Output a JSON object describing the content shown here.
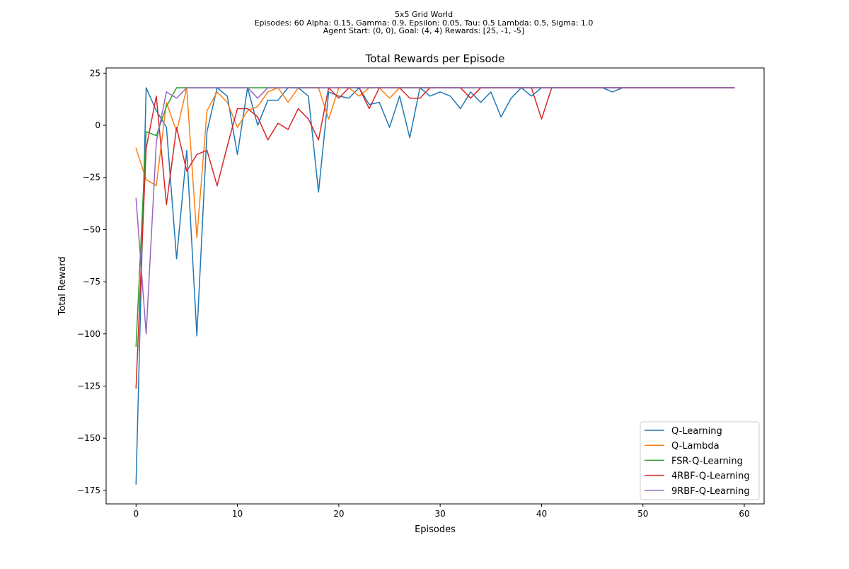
{
  "figure": {
    "suptitle_lines": [
      "5x5 Grid World",
      "Episodes: 60 Alpha: 0.15, Gamma: 0.9, Epsilon: 0.05, Tau: 0.5 Lambda: 0.5, Sigma: 1.0",
      "Agent Start: (0, 0), Goal: (4, 4) Rewards: [25, -1, -5]"
    ]
  },
  "chart_data": {
    "type": "line",
    "title": "Total Rewards per Episode",
    "xlabel": "Episodes",
    "ylabel": "Total Reward",
    "xlim": [
      -2.95,
      61.95
    ],
    "ylim": [
      -181.5,
      27.5
    ],
    "xticks": [
      0,
      10,
      20,
      30,
      40,
      50,
      60
    ],
    "yticks": [
      25,
      0,
      -25,
      -50,
      -75,
      -100,
      -125,
      -150,
      -175
    ],
    "xtick_labels": [
      "0",
      "10",
      "20",
      "30",
      "40",
      "50",
      "60"
    ],
    "ytick_labels": [
      "25",
      "0",
      "−25",
      "−50",
      "−75",
      "−100",
      "−125",
      "−150",
      "−175"
    ],
    "grid": false,
    "legend_position": "lower-right",
    "series": [
      {
        "name": "Q-Learning",
        "color": "#1f77b4",
        "values": [
          -172,
          18,
          7,
          -1,
          -64,
          -12,
          -101,
          -3,
          18,
          14,
          -14,
          18,
          0,
          12,
          12,
          18,
          18,
          14,
          -32,
          16,
          14,
          13,
          18,
          10,
          11,
          -1,
          14,
          -6,
          18,
          14,
          16,
          14,
          8,
          16,
          11,
          16,
          4,
          13,
          18,
          14,
          18,
          18,
          18,
          18,
          18,
          18,
          18,
          16,
          18,
          18,
          18,
          18,
          18,
          18,
          18,
          18,
          18,
          18,
          18,
          18
        ]
      },
      {
        "name": "Q-Lambda",
        "color": "#ff7f0e",
        "values": [
          -11,
          -26,
          -29,
          11,
          -3,
          18,
          -54,
          7,
          16,
          11,
          -1,
          7,
          9,
          16,
          18,
          11,
          18,
          18,
          18,
          3,
          18,
          18,
          14,
          18,
          18,
          13,
          18,
          18,
          18,
          18,
          18,
          18,
          18,
          13,
          18,
          18,
          18,
          18,
          18,
          18,
          18,
          18,
          18,
          18,
          18,
          18,
          18,
          18,
          18,
          18,
          18,
          18,
          18,
          18,
          18,
          18,
          18,
          18,
          18,
          18
        ]
      },
      {
        "name": "FSR-Q-Learning",
        "color": "#2ca02c",
        "values": [
          -106,
          -3,
          -5,
          9,
          18,
          18,
          18,
          18,
          18,
          18,
          18,
          18,
          18,
          18,
          18,
          18,
          18,
          18,
          18,
          18,
          18,
          18,
          18,
          18,
          18,
          18,
          18,
          18,
          18,
          18,
          18,
          18,
          18,
          18,
          18,
          18,
          18,
          18,
          18,
          18,
          18,
          18,
          18,
          18,
          18,
          18,
          18,
          18,
          18,
          18,
          18,
          18,
          18,
          18,
          18,
          18,
          18,
          18,
          18,
          18
        ]
      },
      {
        "name": "4RBF-Q-Learning",
        "color": "#d62728",
        "values": [
          -126,
          -11,
          14,
          -38,
          -1,
          -22,
          -14,
          -12,
          -29,
          -10,
          8,
          8,
          4,
          -7,
          1,
          -2,
          8,
          3,
          -7,
          18,
          13,
          18,
          18,
          8,
          18,
          18,
          18,
          13,
          13,
          18,
          18,
          18,
          18,
          13,
          18,
          18,
          18,
          18,
          18,
          18,
          3,
          18,
          18,
          18,
          18,
          18,
          18,
          18,
          18,
          18,
          18,
          18,
          18,
          18,
          18,
          18,
          18,
          18,
          18,
          18
        ]
      },
      {
        "name": "9RBF-Q-Learning",
        "color": "#9467bd",
        "values": [
          -35,
          -100,
          -8,
          16,
          13,
          18,
          18,
          18,
          18,
          18,
          18,
          18,
          13,
          18,
          18,
          18,
          18,
          18,
          18,
          18,
          18,
          18,
          18,
          18,
          18,
          18,
          18,
          18,
          18,
          18,
          18,
          18,
          18,
          18,
          18,
          18,
          18,
          18,
          18,
          18,
          18,
          18,
          18,
          18,
          18,
          18,
          18,
          18,
          18,
          18,
          18,
          18,
          18,
          18,
          18,
          18,
          18,
          18,
          18,
          18
        ]
      }
    ]
  }
}
